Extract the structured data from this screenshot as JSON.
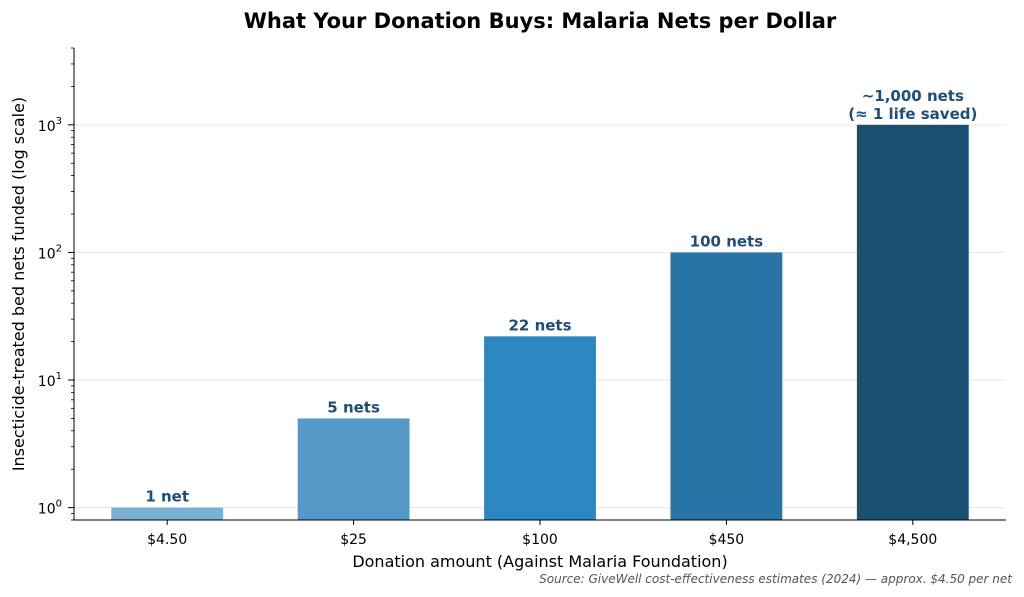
{
  "chart_data": {
    "type": "bar",
    "title": "What Your Donation Buys: Malaria Nets per Dollar",
    "xlabel": "Donation amount (Against Malaria Foundation)",
    "ylabel": "Insecticide-treated bed nets funded (log scale)",
    "yscale": "log",
    "ylim": [
      0.8,
      4000
    ],
    "grid": "horizontal",
    "categories": [
      "$4.50",
      "$25",
      "$100",
      "$450",
      "$4,500"
    ],
    "values": [
      1,
      5,
      22,
      100,
      1000
    ],
    "data_labels": [
      [
        "1 net"
      ],
      [
        "5 nets"
      ],
      [
        "22 nets"
      ],
      [
        "100 nets"
      ],
      [
        "~1,000 nets",
        "(≈ 1 life saved)"
      ]
    ],
    "colors": [
      "#7bafd4",
      "#5499c7",
      "#2e86c1",
      "#2874a6",
      "#1b4f72"
    ],
    "y_ticks": [
      {
        "value": 1,
        "base": "10",
        "exp": "0"
      },
      {
        "value": 10,
        "base": "10",
        "exp": "1"
      },
      {
        "value": 100,
        "base": "10",
        "exp": "2"
      },
      {
        "value": 1000,
        "base": "10",
        "exp": "3"
      }
    ],
    "source": "Source: GiveWell cost-effectiveness estimates (2024) — approx. $4.50 per net"
  }
}
